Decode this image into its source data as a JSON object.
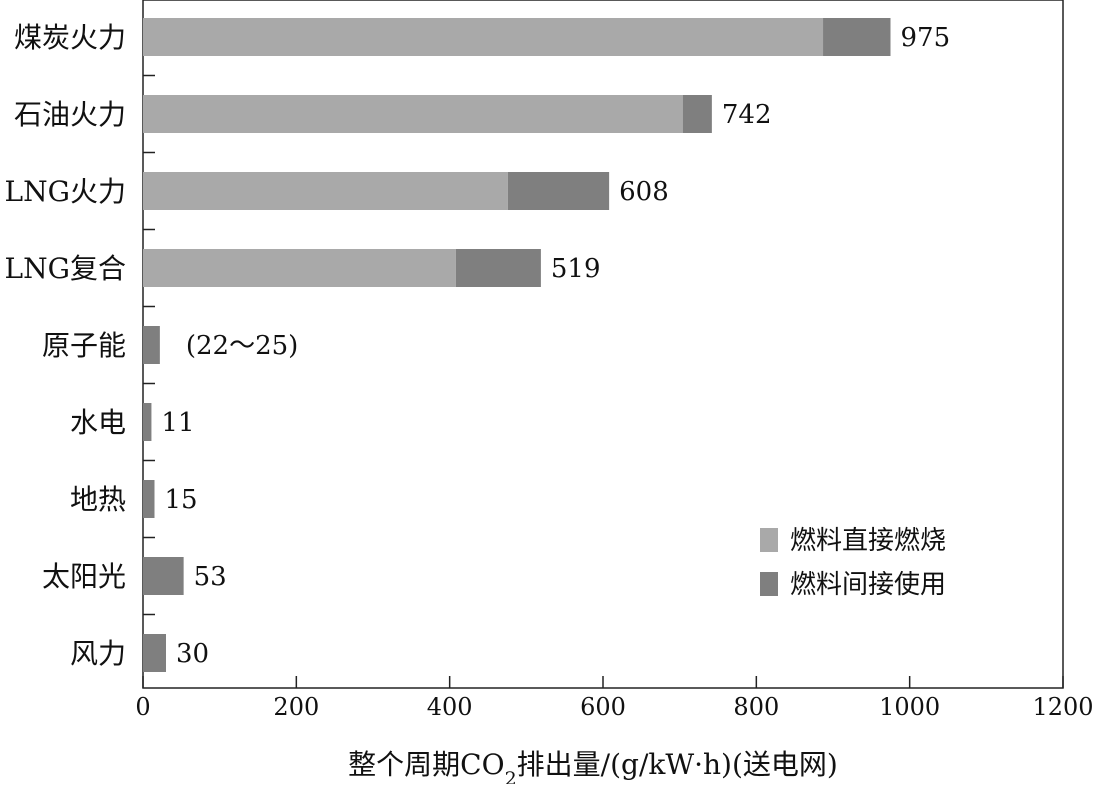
{
  "chart_data": {
    "type": "bar",
    "orientation": "horizontal",
    "stacked": true,
    "categories": [
      "煤炭火力",
      "石油火力",
      "LNG火力",
      "LNG复合",
      "原子能",
      "水电",
      "地热",
      "太阳光",
      "风力"
    ],
    "series": [
      {
        "name": "燃料直接燃烧",
        "color": "#a9a9a9",
        "values": [
          887,
          704,
          476,
          408,
          0,
          0,
          0,
          0,
          0
        ]
      },
      {
        "name": "燃料间接使用",
        "color": "#7f7f7f",
        "values": [
          88,
          38,
          132,
          111,
          22,
          11,
          15,
          53,
          30
        ]
      }
    ],
    "value_labels": [
      "975",
      "742",
      "608",
      "519",
      "(22～25)",
      "11",
      "15",
      "53",
      "30"
    ],
    "x_ticks": [
      "0",
      "200",
      "400",
      "600",
      "800",
      "1000",
      "1200"
    ],
    "xlim": [
      0,
      1200
    ],
    "xlabel": {
      "prefix": "整个周期CO",
      "subscript": "2",
      "suffix": "排出量/(g/kW·h)(送电网)"
    },
    "title": "",
    "legend_position": "bottom-right",
    "grid": false
  }
}
